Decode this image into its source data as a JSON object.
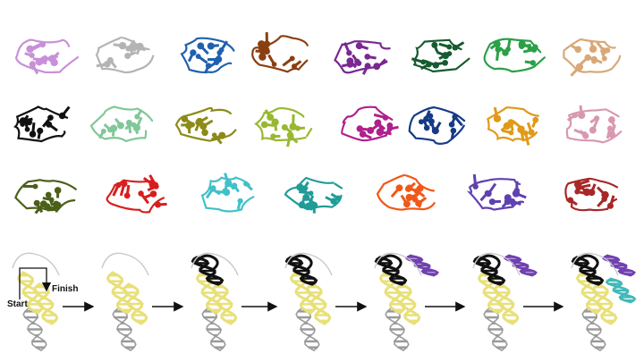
{
  "fragments": [
    {
      "color": "#c890d8"
    },
    {
      "color": "#b4b4b4"
    },
    {
      "color": "#2060b0"
    },
    {
      "color": "#8a3f10"
    },
    {
      "color": "#7a2890"
    },
    {
      "color": "#165a30"
    },
    {
      "color": "#2aa048"
    },
    {
      "color": "#d8a878"
    },
    {
      "color": "#111111"
    },
    {
      "color": "#80c898"
    },
    {
      "color": "#8c8a18"
    },
    {
      "color": "#98b830"
    },
    {
      "color": "#b0208c"
    },
    {
      "color": "#163a88"
    },
    {
      "color": "#e09a18"
    },
    {
      "color": "#d898b0"
    },
    {
      "color": "#4a6018"
    },
    {
      "color": "#d81e1e"
    },
    {
      "color": "#40c0c8"
    },
    {
      "color": "#209c98"
    },
    {
      "color": "#f05818"
    },
    {
      "color": "#6040b0"
    },
    {
      "color": "#a82828"
    }
  ],
  "assembly": {
    "start_label": "Start",
    "finish_label": "Finish",
    "helix_colors": {
      "core": "#e8e078",
      "backbone": "#9a9a9a",
      "black": "#111111",
      "purple": "#7040b0",
      "teal": "#40b8b8"
    },
    "stages": [
      {
        "parts": [
          "core"
        ]
      },
      {
        "parts": [
          "core"
        ]
      },
      {
        "parts": [
          "core",
          "black"
        ]
      },
      {
        "parts": [
          "core",
          "black"
        ]
      },
      {
        "parts": [
          "core",
          "black",
          "purple"
        ]
      },
      {
        "parts": [
          "core",
          "black",
          "purple"
        ]
      },
      {
        "parts": [
          "core",
          "black",
          "purple",
          "teal"
        ]
      }
    ]
  }
}
